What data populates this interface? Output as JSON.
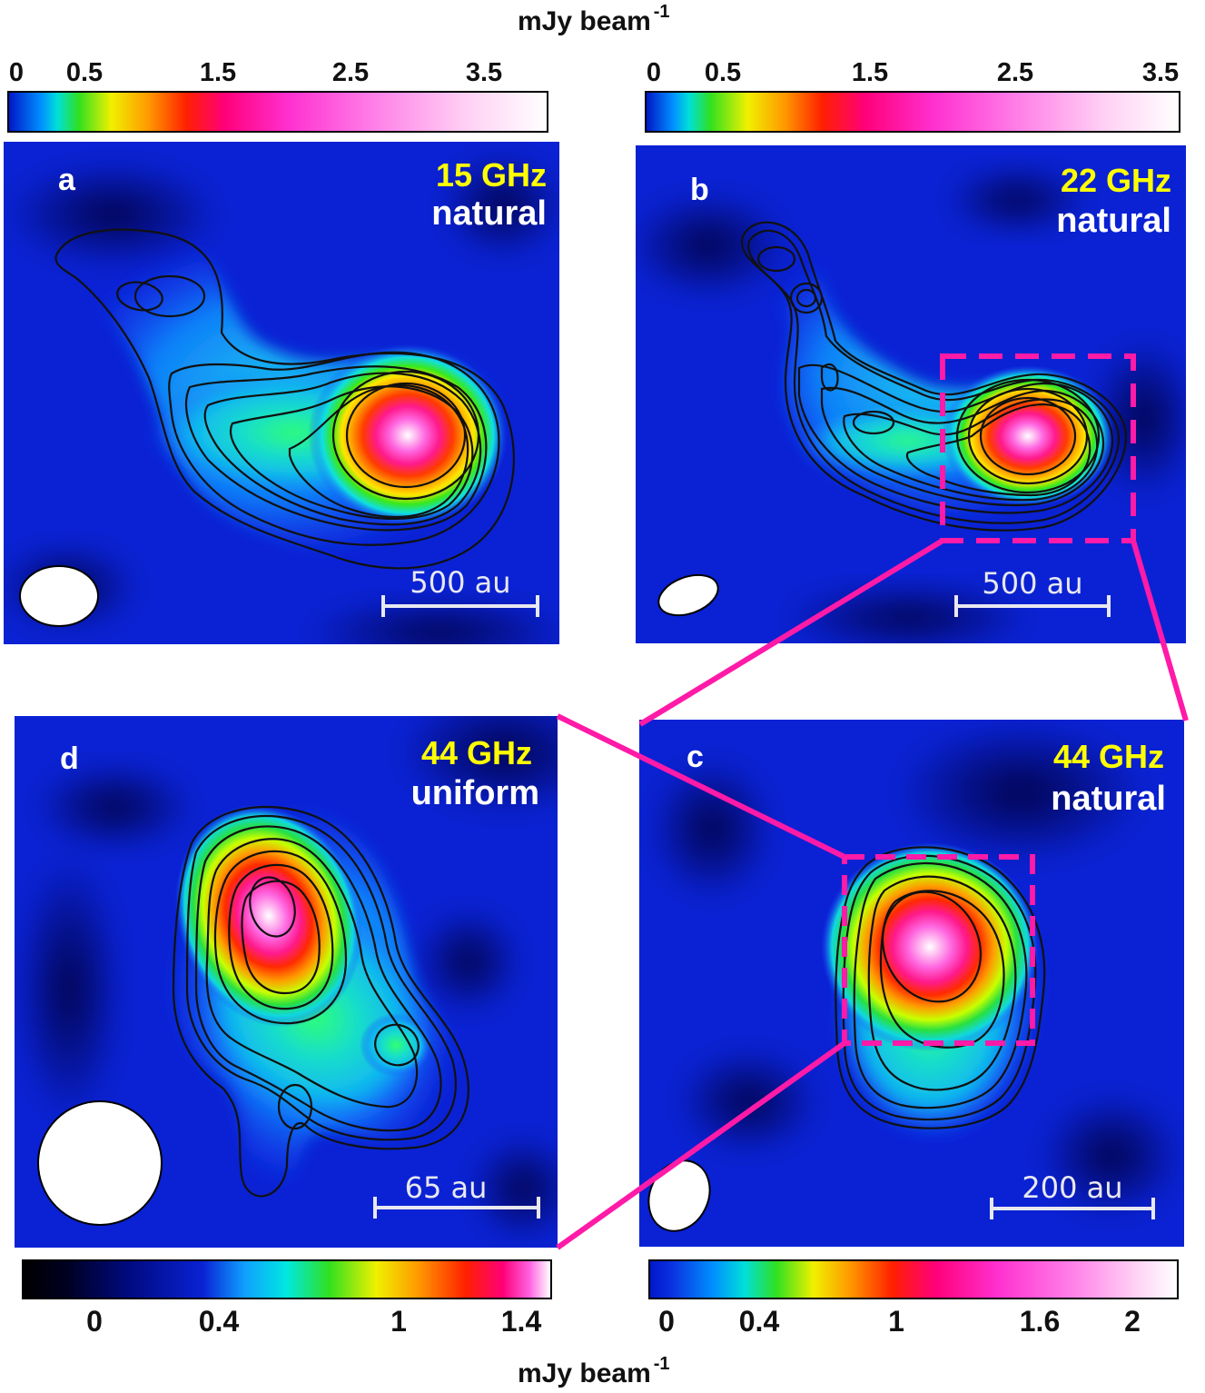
{
  "units": {
    "top": "mJy beam",
    "top_exp": "-1",
    "bottom": "mJy beam",
    "bottom_exp": "-1"
  },
  "colorbars": {
    "a": {
      "ticks": [
        "0",
        "0.5",
        "1.5",
        "2.5",
        "3.5"
      ]
    },
    "b": {
      "ticks": [
        "0",
        "0.5",
        "1.5",
        "2.5",
        "3.5"
      ]
    },
    "d": {
      "ticks": [
        "0",
        "0.4",
        "1",
        "1.4"
      ]
    },
    "c": {
      "ticks": [
        "0",
        "0.4",
        "1",
        "1.6",
        "2"
      ]
    }
  },
  "panels": {
    "a": {
      "letter": "a",
      "frequency": "15 GHz",
      "weighting": "natural",
      "scale": "500 au"
    },
    "b": {
      "letter": "b",
      "frequency": "22 GHz",
      "weighting": "natural",
      "scale": "500 au"
    },
    "c": {
      "letter": "c",
      "frequency": "44 GHz",
      "weighting": "natural",
      "scale": "200 au"
    },
    "d": {
      "letter": "d",
      "frequency": "44 GHz",
      "weighting": "uniform",
      "scale": "65 au"
    }
  },
  "colors": {
    "background_blue": "#0a1fcf",
    "zoom_box": "#ff1aa8",
    "frequency_text": "#ffff00",
    "contour": "#111111"
  }
}
